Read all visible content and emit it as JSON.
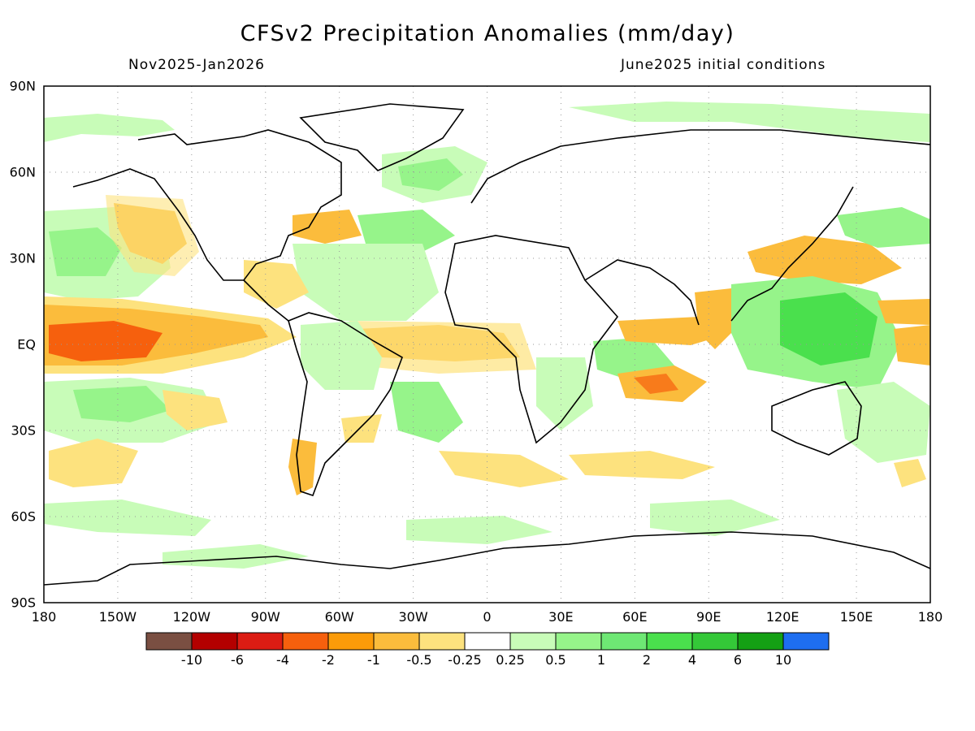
{
  "title": "CFSv2 Precipitation Anomalies (mm/day)",
  "subtitle_left": "Nov2025-Jan2026",
  "subtitle_right": "June2025 initial conditions",
  "lat_labels": [
    "90N",
    "60N",
    "30N",
    "EQ",
    "30S",
    "60S",
    "90S"
  ],
  "lon_labels": [
    "180",
    "150W",
    "120W",
    "90W",
    "60W",
    "30W",
    "0",
    "30E",
    "60E",
    "90E",
    "120E",
    "150E",
    "180"
  ],
  "colorbar": {
    "colors": [
      "#7a4f42",
      "#b30000",
      "#dc1c13",
      "#f6600d",
      "#fb9b09",
      "#fbbc3c",
      "#fde27e",
      "#ffffff",
      "#c8fcb8",
      "#96f48a",
      "#6ee874",
      "#4ae04d",
      "#34c838",
      "#14a014",
      "#1e6ef0"
    ],
    "labels": [
      "-10",
      "-6",
      "-4",
      "-2",
      "-1",
      "-0.5",
      "-0.25",
      "0.25",
      "0.5",
      "1",
      "2",
      "4",
      "6",
      "10"
    ]
  },
  "palette": {
    "dry_strong": "#f6600d",
    "dry_mid": "#fbbc3c",
    "dry_light": "#fde27e",
    "wet_light": "#c8fcb8",
    "wet_mid": "#96f48a",
    "wet_strong": "#4ae04d"
  }
}
